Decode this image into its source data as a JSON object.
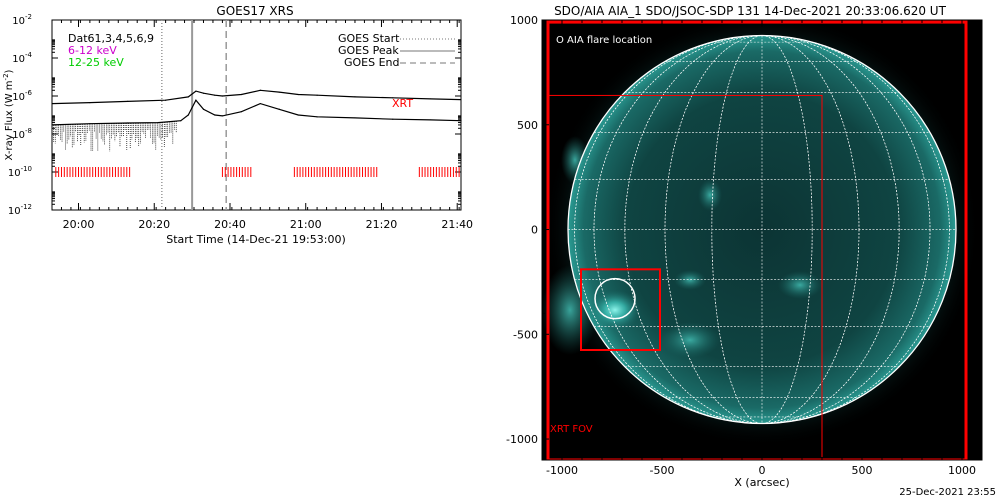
{
  "goes": {
    "title": "GOES17 XRS",
    "xlabel": "Start Time (14-Dec-21 19:53:00)",
    "ylabel_html": "X-ray Flux (W m",
    "ylabel_sup": "-2",
    "ylabel_close": ")",
    "legend_left": [
      {
        "text": "Dat61,3,4,5,6,9",
        "color": "#000000"
      },
      {
        "text": "6-12 keV",
        "color": "#cc00cc"
      },
      {
        "text": "12-25 keV",
        "color": "#00cc00"
      }
    ],
    "legend_right": [
      {
        "text": "GOES Start",
        "style": "dotted"
      },
      {
        "text": "GOES Peak",
        "style": "solid"
      },
      {
        "text": "GOES End",
        "style": "dashed"
      }
    ],
    "xrt_label": "XRT",
    "xrt_color": "#ff0000"
  },
  "aia": {
    "title": "SDO/AIA AIA_1 SDO/JSOC-SDP 131 14-Dec-2021 20:33:06.620 UT",
    "xlabel": "X (arcsec)",
    "flare_label": "O AIA flare location",
    "fov_label": "XRT FOV",
    "disk_color": "#1f8f8a"
  },
  "footer": "25-Dec-2021 23:55",
  "chart_data": [
    {
      "type": "line",
      "title": "GOES17 XRS",
      "xlabel": "Start Time (14-Dec-21 19:53:00)",
      "ylabel": "X-ray Flux (W m-2)",
      "x_units": "minutes after 19:53:00",
      "xlim": [
        0,
        108
      ],
      "ylim": [
        1e-12,
        0.01
      ],
      "ylog": true,
      "x_ticks": [
        7,
        27,
        47,
        67,
        87,
        107
      ],
      "x_tick_labels": [
        "20:00",
        "20:20",
        "20:40",
        "21:00",
        "21:20",
        "21:40"
      ],
      "y_ticks": [
        1e-12,
        1e-10,
        1e-08,
        1e-06,
        0.0001,
        0.01
      ],
      "y_tick_labels": [
        "10",
        "10",
        "10",
        "10",
        "10",
        "10"
      ],
      "y_tick_exponents": [
        "-12",
        "-10",
        "-8",
        "-6",
        "-4",
        "-2"
      ],
      "series": [
        {
          "name": "6-12 keV",
          "color": "#000000",
          "x": [
            0,
            10,
            20,
            30,
            36,
            38,
            40,
            43,
            45,
            50,
            55,
            60,
            65,
            70,
            80,
            90,
            100,
            108
          ],
          "y": [
            4e-07,
            4.5e-07,
            5.2e-07,
            6e-07,
            9e-07,
            1.8e-06,
            1.4e-06,
            1.1e-06,
            1e-06,
            1.2e-06,
            2e-06,
            1.6e-06,
            1.2e-06,
            1.1e-06,
            9e-07,
            8e-07,
            7e-07,
            6.5e-07
          ]
        },
        {
          "name": "12-25 keV",
          "color": "#000000",
          "x": [
            0,
            10,
            20,
            28,
            34,
            36,
            38,
            40,
            43,
            45,
            50,
            55,
            60,
            65,
            70,
            80,
            90,
            100,
            108
          ],
          "y": [
            3e-08,
            3.5e-08,
            3.8e-08,
            4e-08,
            5e-08,
            1e-07,
            6e-07,
            2e-07,
            1e-07,
            9e-08,
            1.5e-07,
            4e-07,
            2e-07,
            1e-07,
            8e-08,
            7e-08,
            6e-08,
            5.5e-08,
            5e-08
          ]
        }
      ],
      "markers": [
        {
          "name": "GOES Start",
          "x": 29,
          "style": "dotted"
        },
        {
          "name": "GOES Peak",
          "x": 37,
          "style": "solid"
        },
        {
          "name": "GOES End",
          "x": 46,
          "style": "dashed"
        }
      ],
      "xrt_coverage": [
        [
          1,
          21
        ],
        [
          45,
          53
        ],
        [
          64,
          86
        ],
        [
          97,
          108
        ]
      ]
    },
    {
      "type": "scatter",
      "title": "SDO/AIA AIA_1 SDO/JSOC-SDP 131 14-Dec-2021 20:33:06.620 UT",
      "xlabel": "X (arcsec)",
      "xlim": [
        -1100,
        1100
      ],
      "ylim": [
        -1100,
        1000
      ],
      "x_ticks": [
        -1000,
        -500,
        0,
        500,
        1000
      ],
      "x_tick_labels": [
        "-1000",
        "-500",
        "0",
        "500",
        "1000"
      ],
      "y_ticks": [
        -1000,
        -500,
        0,
        500,
        1000
      ],
      "y_tick_labels": [
        "-1000",
        "-500",
        "0",
        "500",
        "1000"
      ],
      "solar_radius": 970,
      "flare_location": {
        "x": -735,
        "y": -330,
        "r": 100
      },
      "boxes": [
        {
          "name": "XRT FOV outer",
          "x": [
            -1070,
            1020
          ],
          "y": [
            -1100,
            990
          ]
        },
        {
          "name": "XRT FOV inner",
          "x": [
            -1070,
            300
          ],
          "y": [
            -1100,
            640
          ]
        },
        {
          "name": "flare box",
          "x": [
            -905,
            -510
          ],
          "y": [
            -575,
            -190
          ]
        }
      ]
    }
  ]
}
